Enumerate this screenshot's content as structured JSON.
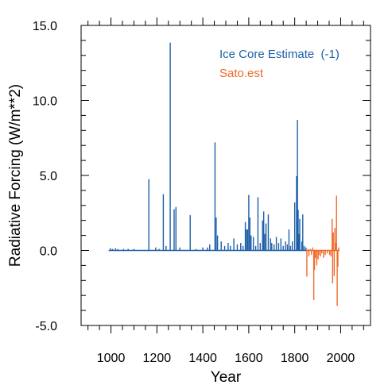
{
  "chart_data": {
    "type": "line",
    "xlabel": "Year",
    "ylabel": "Radiative Forcing (W/m**2)",
    "xlim": [
      870,
      2130
    ],
    "ylim": [
      -5.0,
      15.0
    ],
    "x_ticks": [
      1000,
      1200,
      1400,
      1600,
      1800,
      2000
    ],
    "x_tick_labels": [
      "1000",
      "1200",
      "1400",
      "1600",
      "1800",
      "2000"
    ],
    "y_ticks": [
      -5,
      0,
      5,
      10,
      15
    ],
    "y_tick_labels": [
      "-5.0",
      "0.0",
      "5.0",
      "10.0",
      "15.0"
    ],
    "legend_position": "top-right",
    "series": [
      {
        "name": "Ice Core Estimate  (-1)",
        "color": "#1d5fa8",
        "style": "spikes",
        "baseline_range": [
          990,
          1850
        ],
        "x": [
          998,
          1007,
          1020,
          1030,
          1055,
          1075,
          1100,
          1165,
          1195,
          1210,
          1228,
          1240,
          1258,
          1275,
          1283,
          1300,
          1345,
          1370,
          1400,
          1420,
          1430,
          1453,
          1458,
          1464,
          1480,
          1495,
          1510,
          1520,
          1535,
          1550,
          1565,
          1575,
          1585,
          1590,
          1595,
          1600,
          1605,
          1610,
          1620,
          1630,
          1640,
          1650,
          1660,
          1665,
          1670,
          1675,
          1685,
          1695,
          1700,
          1710,
          1720,
          1730,
          1740,
          1750,
          1760,
          1768,
          1775,
          1782,
          1790,
          1800,
          1808,
          1812,
          1815,
          1819,
          1822,
          1831,
          1835,
          1841,
          1849
        ],
        "y": [
          0.15,
          0.1,
          0.15,
          0.1,
          0.1,
          0.1,
          0.1,
          4.75,
          0.2,
          0.1,
          3.75,
          0.3,
          13.85,
          2.75,
          2.9,
          0.2,
          2.35,
          0.1,
          0.2,
          0.2,
          0.4,
          7.2,
          2.2,
          1.0,
          0.6,
          0.3,
          0.5,
          0.3,
          0.8,
          0.4,
          0.5,
          0.3,
          1.9,
          1.4,
          1.4,
          3.7,
          2.2,
          1.0,
          0.9,
          0.3,
          3.55,
          0.5,
          2.0,
          2.6,
          1.1,
          1.8,
          2.4,
          0.8,
          0.5,
          0.4,
          0.9,
          0.5,
          0.8,
          0.3,
          0.6,
          0.4,
          1.4,
          0.3,
          0.6,
          3.2,
          4.95,
          8.7,
          2.7,
          1.1,
          2.1,
          0.6,
          2.4,
          0.3,
          0.2
        ]
      },
      {
        "name": "Sato.est",
        "color": "#f06a2a",
        "style": "spikes",
        "baseline_range": [
          1850,
          1995
        ],
        "x": [
          1853,
          1858,
          1862,
          1868,
          1873,
          1878,
          1883,
          1886,
          1890,
          1896,
          1902,
          1905,
          1912,
          1918,
          1926,
          1933,
          1942,
          1952,
          1958,
          1963,
          1965,
          1968,
          1972,
          1975,
          1978,
          1982,
          1985,
          1988,
          1991,
          1993
        ],
        "y": [
          -1.75,
          0.1,
          -0.4,
          0.1,
          -0.3,
          0.2,
          -3.3,
          -1.3,
          -0.5,
          -1.0,
          -0.6,
          -0.3,
          -0.4,
          -0.2,
          -0.5,
          -0.3,
          -0.2,
          -0.3,
          -0.4,
          2.1,
          -2.2,
          1.2,
          -1.7,
          1.5,
          0.5,
          3.65,
          -3.7,
          -1.1,
          0.2,
          0.0
        ]
      }
    ]
  }
}
